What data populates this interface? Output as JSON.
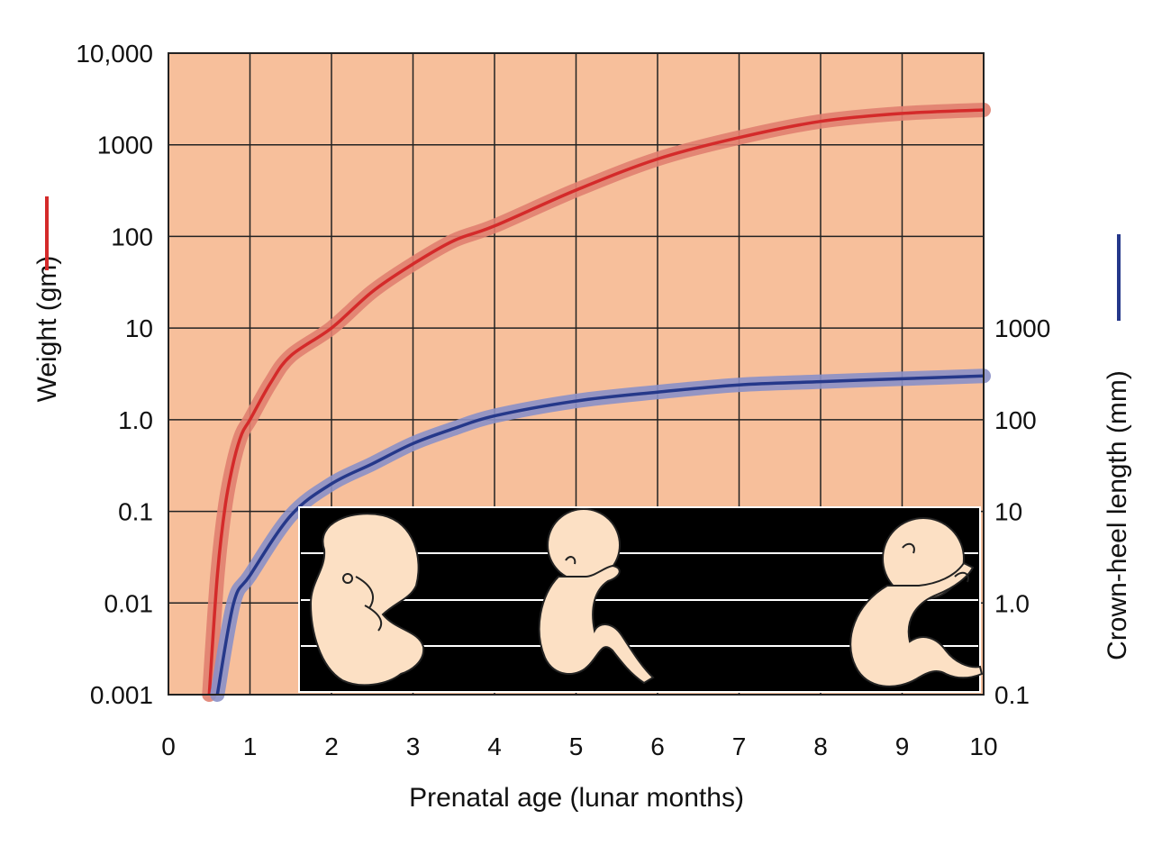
{
  "chart_data": {
    "type": "line",
    "xlabel": "Prenatal age (lunar months)",
    "ylabel_left": "Weight (gm)",
    "ylabel_right": "Crown-heel length (mm)",
    "xlim": [
      0,
      10
    ],
    "x_ticks": [
      "0",
      "1",
      "2",
      "3",
      "4",
      "5",
      "6",
      "7",
      "8",
      "9",
      "10"
    ],
    "y_left_scale": "log",
    "y_left_lim": [
      0.001,
      10000
    ],
    "y_left_ticks": [
      {
        "value": 10000,
        "label": "10,000"
      },
      {
        "value": 1000,
        "label": "1000"
      },
      {
        "value": 100,
        "label": "100"
      },
      {
        "value": 10,
        "label": "10"
      },
      {
        "value": 1,
        "label": "1.0"
      },
      {
        "value": 0.1,
        "label": "0.1"
      },
      {
        "value": 0.01,
        "label": "0.01"
      },
      {
        "value": 0.001,
        "label": "0.001"
      }
    ],
    "y_right_scale": "log",
    "y_right_lim": [
      0.1,
      1000
    ],
    "y_right_ticks": [
      {
        "value": 1000,
        "label": "1000"
      },
      {
        "value": 100,
        "label": "100"
      },
      {
        "value": 10,
        "label": "10"
      },
      {
        "value": 1,
        "label": "1.0"
      },
      {
        "value": 0.1,
        "label": "0.1"
      }
    ],
    "grid": true,
    "series": [
      {
        "axis": "left",
        "color": "#d42a2a",
        "band_color": "#e08070",
        "x": [
          0.5,
          0.6,
          0.7,
          0.8,
          0.9,
          1.0,
          1.25,
          1.5,
          2.0,
          2.5,
          3.0,
          3.5,
          4.0,
          5.0,
          6.0,
          7.0,
          8.0,
          9.0,
          10.0
        ],
        "y": [
          0.001,
          0.02,
          0.12,
          0.35,
          0.7,
          1.0,
          2.5,
          5.0,
          10,
          25,
          50,
          90,
          130,
          320,
          700,
          1200,
          1800,
          2200,
          2400
        ]
      },
      {
        "axis": "right",
        "color": "#25388a",
        "band_color": "#8a90c8",
        "x": [
          0.6,
          0.8,
          1.0,
          1.5,
          2.0,
          2.5,
          3.0,
          3.5,
          4.0,
          5.0,
          6.0,
          7.0,
          8.0,
          9.0,
          10.0
        ],
        "y": [
          0.1,
          1.0,
          2.0,
          9.0,
          20,
          33,
          55,
          80,
          110,
          160,
          200,
          240,
          260,
          280,
          300
        ]
      }
    ]
  },
  "inset": {
    "background": "#000000",
    "figure_color": "#fce0c4"
  },
  "colors": {
    "plot_background": "#f7bf9b",
    "grid": "#222222"
  }
}
